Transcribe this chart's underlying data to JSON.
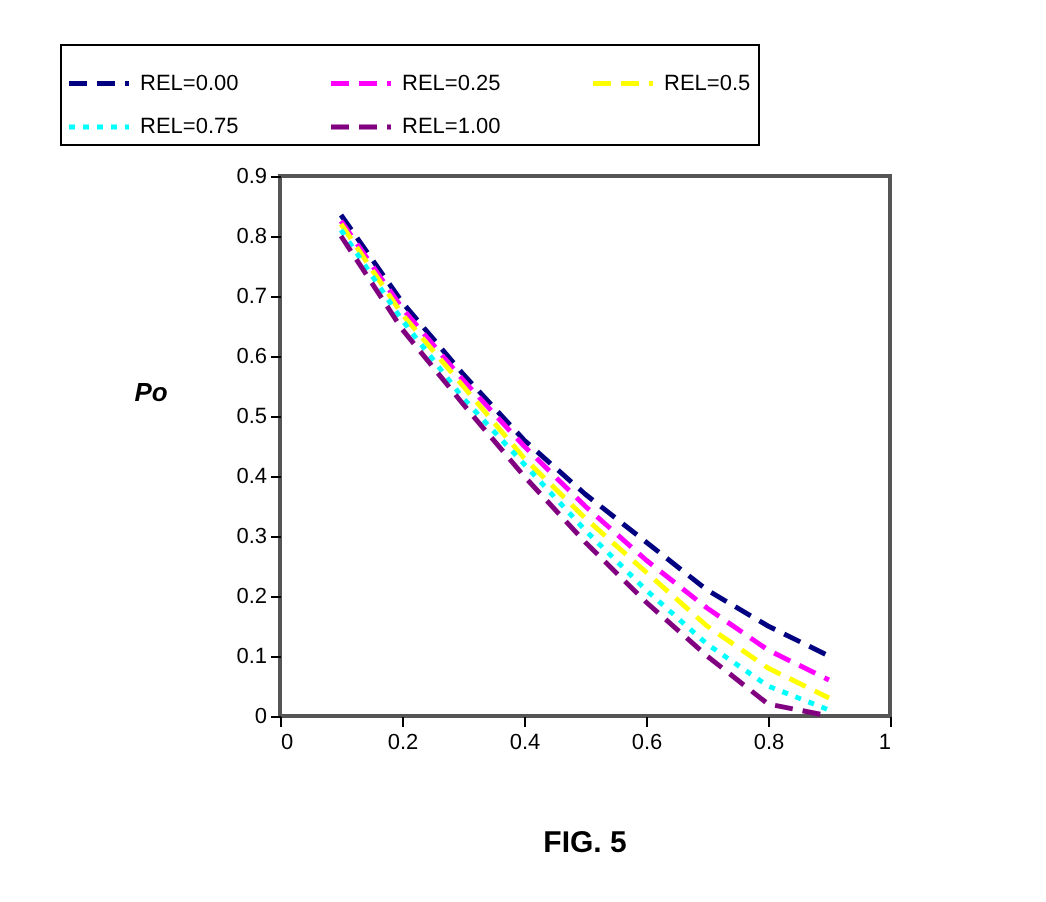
{
  "chart_data": {
    "type": "line",
    "title": "FIG.  5",
    "ylabel": "Po",
    "x": [
      0.1,
      0.2,
      0.3,
      0.4,
      0.5,
      0.6,
      0.7,
      0.8,
      0.9
    ],
    "xlim": [
      0,
      1
    ],
    "xticks": [
      0,
      0.2,
      0.4,
      0.6,
      0.8,
      1
    ],
    "ylim": [
      0,
      0.9
    ],
    "yticks": [
      0,
      0.1,
      0.2,
      0.3,
      0.4,
      0.5,
      0.6,
      0.7,
      0.8,
      0.9
    ],
    "legend": "top",
    "grid": false,
    "series": [
      {
        "name": "REL=0.00",
        "color": "#000080",
        "line_style": "dashed",
        "values": [
          0.835,
          0.69,
          0.57,
          0.46,
          0.37,
          0.29,
          0.21,
          0.15,
          0.1
        ]
      },
      {
        "name": "REL=0.25",
        "color": "#ff00ff",
        "line_style": "dashed",
        "values": [
          0.825,
          0.68,
          0.56,
          0.45,
          0.35,
          0.26,
          0.18,
          0.11,
          0.06
        ]
      },
      {
        "name": "REL=0.5",
        "color": "#ffff00",
        "line_style": "dashed",
        "values": [
          0.82,
          0.67,
          0.55,
          0.43,
          0.33,
          0.24,
          0.15,
          0.08,
          0.03
        ]
      },
      {
        "name": "REL=0.75",
        "color": "#00ffff",
        "line_style": "dotted",
        "values": [
          0.81,
          0.66,
          0.53,
          0.42,
          0.31,
          0.21,
          0.12,
          0.05,
          0.01
        ]
      },
      {
        "name": "REL=1.00",
        "color": "#800080",
        "line_style": "dashed",
        "values": [
          0.8,
          0.645,
          0.52,
          0.4,
          0.29,
          0.19,
          0.1,
          0.02,
          0
        ]
      }
    ]
  }
}
